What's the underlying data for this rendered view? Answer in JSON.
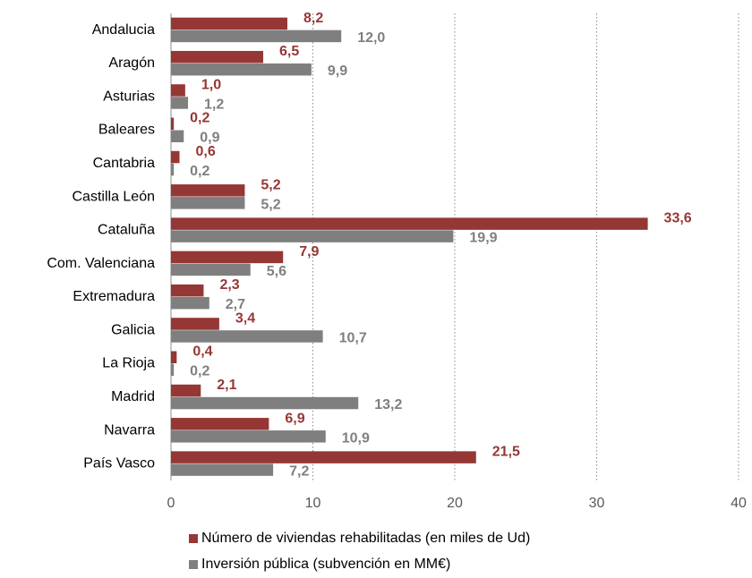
{
  "chart_data": {
    "type": "hbar",
    "categories": [
      "Andalucia",
      "Aragón",
      "Asturias",
      "Baleares",
      "Cantabria",
      "Castilla León",
      "Cataluña",
      "Com. Valenciana",
      "Extremadura",
      "Galicia",
      "La Rioja",
      "Madrid",
      "Navarra",
      "País Vasco"
    ],
    "series": [
      {
        "name": "Número de viviendas rehabilitadas (en miles de Ud)",
        "color": "#953735",
        "values": [
          8.2,
          6.5,
          1.0,
          0.2,
          0.6,
          5.2,
          33.6,
          7.9,
          2.3,
          3.4,
          0.4,
          2.1,
          6.9,
          21.5
        ],
        "value_labels": [
          "8,2",
          "6,5",
          "1,0",
          "0,2",
          "0,6",
          "5,2",
          "33,6",
          "7,9",
          "2,3",
          "3,4",
          "0,4",
          "2,1",
          "6,9",
          "21,5"
        ]
      },
      {
        "name": "Inversión pública (subvención en MM€)",
        "color": "#7f7f7f",
        "values": [
          12.0,
          9.9,
          1.2,
          0.9,
          0.2,
          5.2,
          19.9,
          5.6,
          2.7,
          10.7,
          0.2,
          13.2,
          10.9,
          7.2
        ],
        "value_labels": [
          "12,0",
          "9,9",
          "1,2",
          "0,9",
          "0,2",
          "5,2",
          "19,9",
          "5,6",
          "2,7",
          "10,7",
          "0,2",
          "13,2",
          "10,9",
          "7,2"
        ]
      }
    ],
    "xlim": [
      0,
      40
    ],
    "xticks": [
      0,
      10,
      20,
      30,
      40
    ],
    "grid": true,
    "legend": "bottom"
  }
}
